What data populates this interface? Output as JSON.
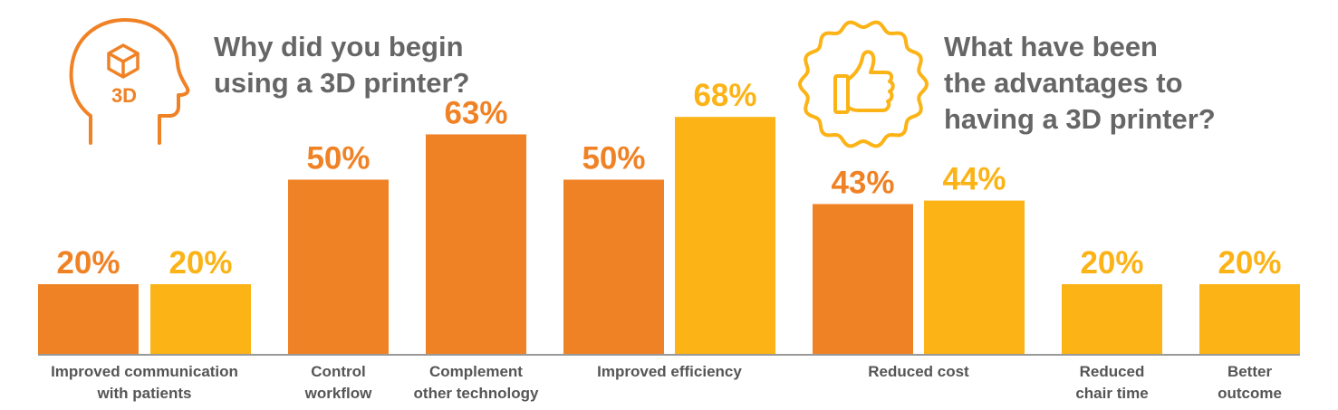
{
  "question_begin": {
    "lines": [
      "Why did you begin",
      "using a 3D printer?"
    ],
    "icon": "head-3d-cube-icon",
    "icon_text": "3D"
  },
  "question_advantages": {
    "lines": [
      "What have been",
      "the advantages to",
      "having a 3D printer?"
    ],
    "icon": "thumbs-up-badge-icon"
  },
  "colors": {
    "begin": "#F08226",
    "advantage": "#FBB316",
    "axis": "#999999",
    "text": "#666666"
  },
  "chart_data": {
    "type": "bar",
    "title": "Why did you begin using a 3D printer? / What have been the advantages to having a 3D printer?",
    "value_suffix": "%",
    "ylim": [
      0,
      80
    ],
    "categories": [
      {
        "label": [
          "Improved communication",
          "with patients"
        ],
        "begin": 20,
        "advantage": 20
      },
      {
        "label": [
          "Control",
          "workflow"
        ],
        "begin": 50,
        "advantage": null
      },
      {
        "label": [
          "Complement",
          "other technology"
        ],
        "begin": 63,
        "advantage": null
      },
      {
        "label": [
          "Improved efficiency"
        ],
        "begin": 50,
        "advantage": 68
      },
      {
        "label": [
          "Reduced cost"
        ],
        "begin": 43,
        "advantage": 44
      },
      {
        "label": [
          "Reduced",
          "chair time"
        ],
        "begin": null,
        "advantage": 20
      },
      {
        "label": [
          "Better",
          "outcome"
        ],
        "begin": null,
        "advantage": 20
      }
    ],
    "series": [
      {
        "name": "Why did you begin using a 3D printer?",
        "key": "begin"
      },
      {
        "name": "What have been the advantages to having a 3D printer?",
        "key": "advantage"
      }
    ]
  }
}
